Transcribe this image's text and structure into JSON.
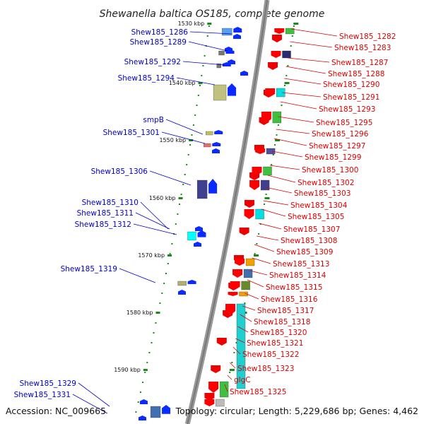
{
  "title": "Shewanella baltica OS185, complete genome",
  "footer": {
    "accession": "Accession: NC_009665",
    "topology": "Topology: circular; Length: 5,229,686 bp; Genes: 4,462"
  },
  "colors": {
    "left_label": "#0000cc",
    "right_label": "#dd0000",
    "tick": "#1a8a1a",
    "backbone": "#888888"
  },
  "tick_labels": [
    "1530 kbp",
    "1540 kbp",
    "1550 kbp",
    "1560 kbp",
    "1570 kbp",
    "1580 kbp",
    "1590 kbp"
  ],
  "left_labels": [
    "Shew185_1286",
    "Shew185_1289",
    "Shew185_1292",
    "Shew185_1294",
    "smpB",
    "Shew185_1301",
    "Shew185_1306",
    "Shew185_1310",
    "Shew185_1311",
    "Shew185_1312",
    "Shew185_1319",
    "Shew185_1329",
    "Shew185_1331"
  ],
  "right_labels": [
    "Shew185_1282",
    "Shew185_1283",
    "Shew185_1287",
    "Shew185_1288",
    "Shew185_1290",
    "Shew185_1291",
    "Shew185_1293",
    "Shew185_1295",
    "Shew185_1296",
    "Shew185_1297",
    "Shew185_1299",
    "Shew185_1300",
    "Shew185_1302",
    "Shew185_1303",
    "Shew185_1304",
    "Shew185_1305",
    "Shew185_1307",
    "Shew185_1308",
    "Shew185_1309",
    "Shew185_1313",
    "Shew185_1314",
    "Shew185_1315",
    "Shew185_1316",
    "Shew185_1317",
    "Shew185_1318",
    "Shew185_1320",
    "Shew185_1321",
    "Shew185_1322",
    "Shew185_1323",
    "glgC",
    "Shew185_1325"
  ]
}
